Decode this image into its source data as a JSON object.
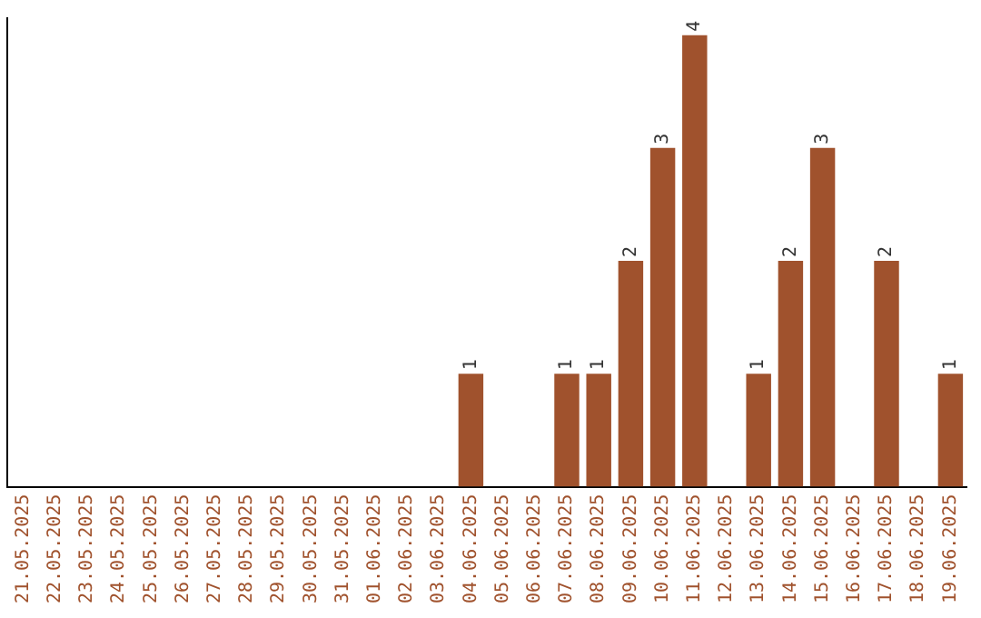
{
  "chart_data": {
    "type": "bar",
    "categories": [
      "21.05.2025",
      "22.05.2025",
      "23.05.2025",
      "24.05.2025",
      "25.05.2025",
      "26.05.2025",
      "27.05.2025",
      "28.05.2025",
      "29.05.2025",
      "30.05.2025",
      "31.05.2025",
      "01.06.2025",
      "02.06.2025",
      "03.06.2025",
      "04.06.2025",
      "05.06.2025",
      "06.06.2025",
      "07.06.2025",
      "08.06.2025",
      "09.06.2025",
      "10.06.2025",
      "11.06.2025",
      "12.06.2025",
      "13.06.2025",
      "14.06.2025",
      "15.06.2025",
      "16.06.2025",
      "17.06.2025",
      "18.06.2025",
      "19.06.2025"
    ],
    "values": [
      null,
      null,
      null,
      null,
      null,
      null,
      null,
      null,
      null,
      null,
      null,
      null,
      null,
      null,
      1,
      null,
      null,
      1,
      1,
      2,
      3,
      4,
      null,
      1,
      2,
      3,
      null,
      2,
      null,
      1
    ],
    "data_labels": true,
    "color": "#a0522d",
    "ylim": [
      0,
      4.15
    ],
    "tick_labels": "x",
    "grid": false,
    "legend": false
  }
}
